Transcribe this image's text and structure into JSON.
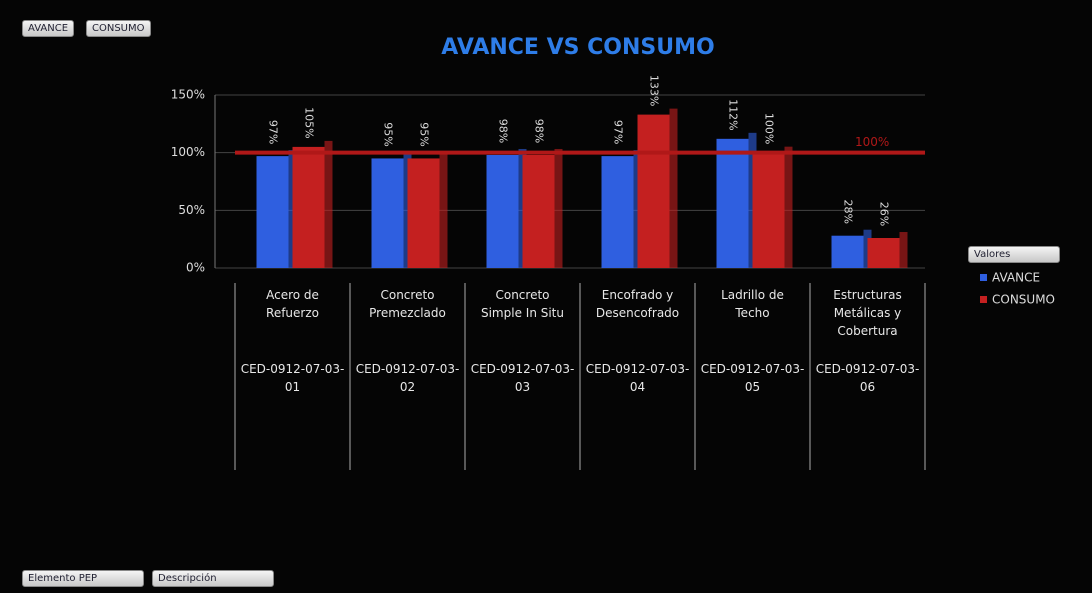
{
  "chart_data": {
    "type": "bar",
    "title": "AVANCE VS CONSUMO",
    "categories": [
      "Acero de Refuerzo",
      "Concreto Premezclado",
      "Concreto Simple In Situ",
      "Encofrado y Desencofrado",
      "Ladrillo de Techo",
      "Estructuras Metálicas y Cobertura"
    ],
    "category_codes": [
      "CED-0912-07-03-01",
      "CED-0912-07-03-02",
      "CED-0912-07-03-03",
      "CED-0912-07-03-04",
      "CED-0912-07-03-05",
      "CED-0912-07-03-06"
    ],
    "series": [
      {
        "name": "AVANCE",
        "color": "#2f5fe0",
        "values": [
          97,
          95,
          98,
          97,
          112,
          28
        ],
        "value_labels": [
          "97%",
          "95%",
          "98%",
          "97%",
          "112%",
          "28%"
        ]
      },
      {
        "name": "CONSUMO",
        "color": "#c42020",
        "values": [
          105,
          95,
          98,
          133,
          100,
          26
        ],
        "value_labels": [
          "105%",
          "95%",
          "98%",
          "133%",
          "100%",
          "26%"
        ]
      }
    ],
    "ylim": [
      0,
      150
    ],
    "yticks": [
      {
        "value": 0,
        "label": "0%"
      },
      {
        "value": 50,
        "label": "50%"
      },
      {
        "value": 100,
        "label": "100%"
      },
      {
        "value": 150,
        "label": "150%"
      }
    ],
    "grid": true,
    "reference_line": {
      "value": 100,
      "label": "100%",
      "color": "#b01818"
    },
    "legend_title": "Valores",
    "legend": "right"
  },
  "field_buttons": {
    "top": [
      "AVANCE",
      "CONSUMO"
    ],
    "bottom": [
      "Elemento PEP",
      "Descripción"
    ]
  }
}
